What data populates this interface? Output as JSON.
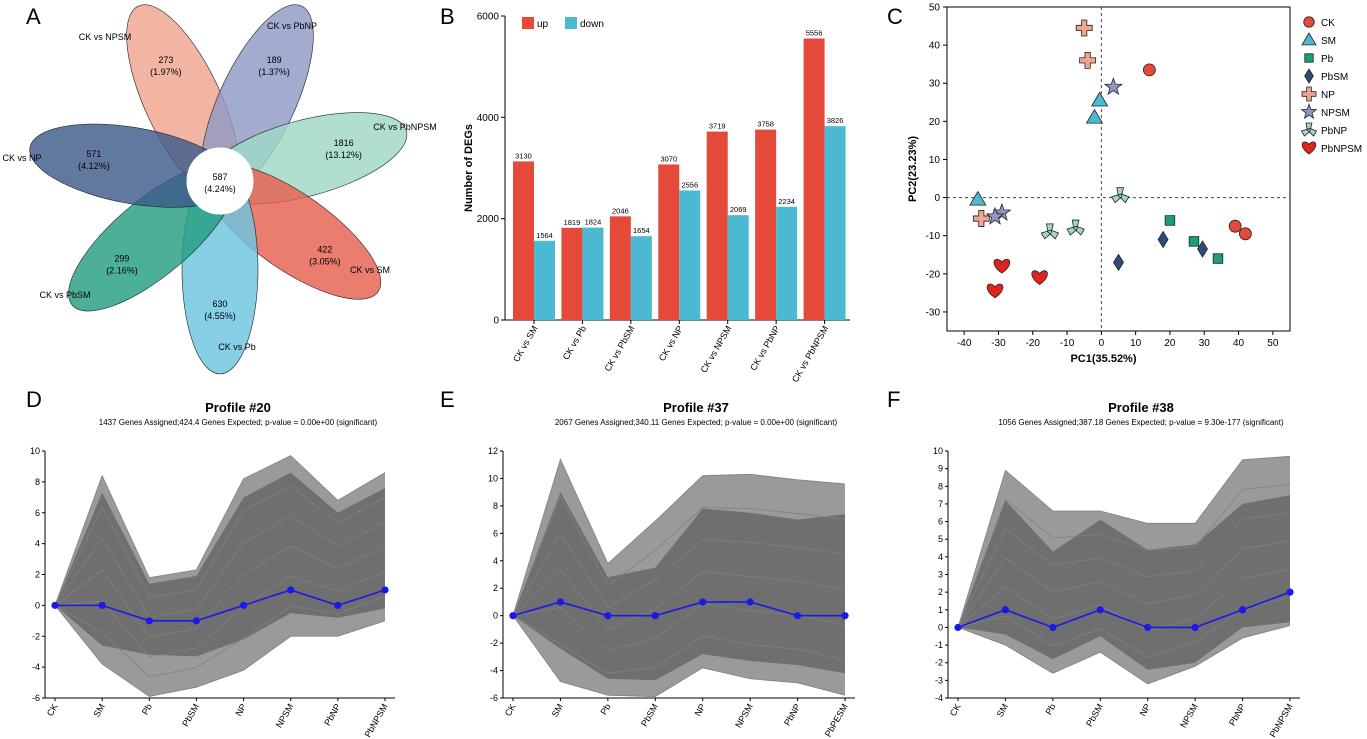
{
  "panel_labels": [
    "A",
    "B",
    "C",
    "D",
    "E",
    "F"
  ],
  "chart_data": [
    {
      "panel": "A",
      "type": "venn",
      "center": {
        "value": "587",
        "pct": "(4.24%)"
      },
      "petals": [
        {
          "name": "CK vs NPSM",
          "value": "273",
          "pct": "(1.97%)",
          "color": "#f0a58f"
        },
        {
          "name": "CK vs PbNP",
          "value": "189",
          "pct": "(1.37%)",
          "color": "#8f98c4"
        },
        {
          "name": "CK vs PbNPSM",
          "value": "1816",
          "pct": "(13.12%)",
          "color": "#9fd8c8"
        },
        {
          "name": "CK vs SM",
          "value": "422",
          "pct": "(3.05%)",
          "color": "#e5604e"
        },
        {
          "name": "CK vs Pb",
          "value": "630",
          "pct": "(4.55%)",
          "color": "#6cc4df"
        },
        {
          "name": "CK vs PbSM",
          "value": "299",
          "pct": "(2.16%)",
          "color": "#259e80"
        },
        {
          "name": "CK vs NP",
          "value": "571",
          "pct": "(4.12%)",
          "color": "#3e5a8a"
        }
      ]
    },
    {
      "panel": "B",
      "type": "bar",
      "categories": [
        "CK vs SM",
        "CK vs Pb",
        "CK vs PbSM",
        "CK vs NP",
        "CK vs NPSM",
        "CK vs PbNP",
        "CK vs PbNPSM"
      ],
      "series": [
        {
          "name": "up",
          "color": "#e5493a",
          "values": [
            3130,
            1819,
            2046,
            3070,
            3719,
            3758,
            5556
          ]
        },
        {
          "name": "down",
          "color": "#4cb9d3",
          "values": [
            1564,
            1824,
            1654,
            2556,
            2069,
            2234,
            3826
          ]
        }
      ],
      "ylabel": "Number of DEGs",
      "ylim": [
        0,
        6000
      ],
      "yticks": [
        0,
        2000,
        4000,
        6000
      ]
    },
    {
      "panel": "C",
      "type": "scatter",
      "xlabel": "PC1(35.52%)",
      "ylabel": "PC2(23.23%)",
      "xlim": [
        -45,
        55
      ],
      "ylim": [
        -35,
        50
      ],
      "xticks": [
        -40,
        -30,
        -20,
        -10,
        0,
        10,
        20,
        30,
        40,
        50
      ],
      "yticks": [
        -30,
        -20,
        -10,
        0,
        10,
        20,
        30,
        40,
        50
      ],
      "series": [
        {
          "name": "CK",
          "marker": "circle",
          "color": "#e5493a",
          "points": [
            [
              14,
              33.5
            ],
            [
              39,
              -7.5
            ],
            [
              42,
              -9.5
            ]
          ]
        },
        {
          "name": "SM",
          "marker": "triangle",
          "color": "#4cb9d3",
          "points": [
            [
              -36,
              -0.5
            ],
            [
              -0.5,
              25.5
            ],
            [
              -2,
              21
            ]
          ]
        },
        {
          "name": "Pb",
          "marker": "square",
          "color": "#1a9e7c",
          "points": [
            [
              20,
              -6
            ],
            [
              27,
              -11.5
            ],
            [
              34,
              -16
            ]
          ]
        },
        {
          "name": "PbSM",
          "marker": "diamond",
          "color": "#324a7a",
          "points": [
            [
              5,
              -17
            ],
            [
              18,
              -11
            ],
            [
              29.5,
              -13.5
            ]
          ]
        },
        {
          "name": "NP",
          "marker": "plus",
          "color": "#f0a58f",
          "points": [
            [
              -5,
              44.5
            ],
            [
              -4,
              36
            ],
            [
              -35,
              -5.5
            ]
          ]
        },
        {
          "name": "NPSM",
          "marker": "star",
          "color": "#8f98c4",
          "points": [
            [
              3.5,
              29
            ],
            [
              -29,
              -4
            ],
            [
              -31,
              -5
            ]
          ]
        },
        {
          "name": "PbNP",
          "marker": "tri3",
          "color": "#9fd8c8",
          "points": [
            [
              5.5,
              0.5
            ],
            [
              -15,
              -9
            ],
            [
              -7.5,
              -8
            ]
          ]
        },
        {
          "name": "PbNPSM",
          "marker": "heart",
          "color": "#e0241c",
          "points": [
            [
              -29,
              -18
            ],
            [
              -18,
              -21
            ],
            [
              -31,
              -24.5
            ]
          ]
        }
      ]
    },
    {
      "panel": "D",
      "type": "line",
      "title": "Profile #20",
      "subtitle": "1437 Genes Assigned;424.4 Genes Expected; p-value = 0.00e+00 (significant)",
      "categories": [
        "CK",
        "SM",
        "Pb",
        "PbSM",
        "NP",
        "NPSM",
        "PbNP",
        "PbNPSM"
      ],
      "ylim": [
        -6,
        10
      ],
      "yticks": [
        -6,
        -4,
        -2,
        0,
        2,
        4,
        6,
        8,
        10
      ],
      "model_profile": [
        0,
        0,
        -1,
        -1,
        0,
        1,
        0,
        1
      ],
      "envelope_upper": [
        0,
        8.4,
        1.8,
        2.3,
        8.2,
        9.7,
        6.8,
        8.6
      ],
      "envelope_lower": [
        0,
        -3.8,
        -5.9,
        -5.3,
        -4.2,
        -2.0,
        -2.0,
        -1.0
      ],
      "dense_upper": [
        0,
        7.3,
        1.4,
        1.9,
        7.0,
        8.6,
        6.0,
        7.6
      ],
      "dense_lower": [
        0,
        -2.6,
        -3.2,
        -3.3,
        -2.2,
        -0.5,
        -0.8,
        -0.2
      ]
    },
    {
      "panel": "E",
      "type": "line",
      "title": "Profile #37",
      "subtitle": "2067 Genes Assigned;340.11 Genes Expected; p-value = 0.00e+00 (significant)",
      "categories": [
        "CK",
        "SM",
        "Pb",
        "PbSM",
        "NP",
        "NPSM",
        "PbNP",
        "PbPESM"
      ],
      "ylim": [
        -6,
        12
      ],
      "yticks": [
        -6,
        -4,
        -2,
        0,
        2,
        4,
        6,
        8,
        10,
        12
      ],
      "model_profile": [
        0,
        1,
        0,
        0,
        1,
        1,
        0,
        0
      ],
      "envelope_upper": [
        0,
        11.4,
        3.8,
        6.9,
        10.2,
        10.3,
        9.9,
        9.6
      ],
      "envelope_lower": [
        0,
        -4.8,
        -5.8,
        -5.9,
        -3.8,
        -4.6,
        -4.9,
        -5.8
      ],
      "dense_upper": [
        0,
        9.0,
        2.8,
        3.5,
        7.8,
        7.5,
        7.0,
        7.4
      ],
      "dense_lower": [
        0,
        -2.4,
        -4.6,
        -4.7,
        -2.8,
        -3.3,
        -3.6,
        -4.2
      ]
    },
    {
      "panel": "F",
      "type": "line",
      "title": "Profile #38",
      "subtitle": "1056 Genes Assigned;387.18 Genes Expected; p-value = 9.30e-177 (significant)",
      "categories": [
        "CK",
        "SM",
        "Pb",
        "PbSM",
        "NP",
        "NPSM",
        "PbNP",
        "PbNPSM"
      ],
      "ylim": [
        -4,
        10
      ],
      "yticks": [
        -4,
        -3,
        -2,
        -1,
        0,
        1,
        2,
        3,
        4,
        5,
        6,
        7,
        8,
        9,
        10
      ],
      "model_profile": [
        0,
        1,
        0,
        1,
        0,
        0,
        1,
        2
      ],
      "envelope_upper": [
        0,
        8.9,
        6.6,
        6.6,
        5.9,
        5.9,
        9.5,
        9.7
      ],
      "envelope_lower": [
        0,
        -1.0,
        -2.6,
        -1.4,
        -3.2,
        -2.2,
        -0.6,
        0.1
      ],
      "dense_upper": [
        0,
        7.2,
        4.3,
        6.1,
        4.4,
        4.7,
        7.0,
        7.5
      ],
      "dense_lower": [
        0,
        -0.4,
        -1.8,
        -0.5,
        -2.4,
        -2.0,
        0.0,
        0.3
      ]
    }
  ]
}
